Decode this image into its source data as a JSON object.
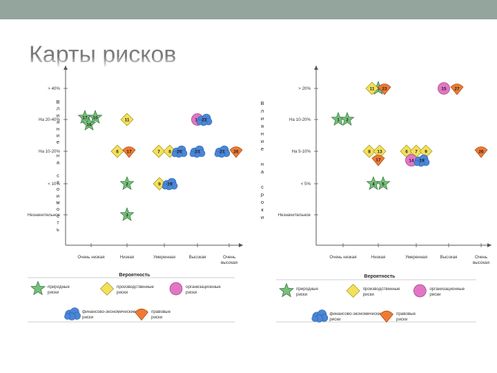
{
  "slide": {
    "title": "Карты рисков"
  },
  "colors": {
    "natural": "#77c07a",
    "production": "#f3e05a",
    "organizational": "#e276c4",
    "financial": "#4a86d8",
    "legal": "#f07a33",
    "background_bar": "#93a59c"
  },
  "chart_data": [
    {
      "type": "scatter",
      "title": "",
      "xlabel": "Вероятность",
      "ylabel": "Влияние на стоимость",
      "ylabel_chars": [
        "В",
        "л",
        "и",
        "я",
        "н",
        "и",
        "е",
        "",
        "н",
        "а",
        "",
        "с",
        "т",
        "о",
        "и",
        "м",
        "о",
        "с",
        "т",
        "ь"
      ],
      "x_categories": [
        "Очень низкая",
        "Низкая",
        "Умеренная",
        "Высокая",
        "Очень высокая"
      ],
      "y_categories": [
        "Незначительное",
        "< 10%",
        "На 10-20%",
        "На 20-40%",
        "> 40%"
      ],
      "points": [
        {
          "id": "17",
          "category": "natural",
          "x": "Очень низкая",
          "y": "На 20-40%"
        },
        {
          "id": "10",
          "category": "natural",
          "x": "Очень низкая",
          "y": "На 20-40%"
        },
        {
          "id": "16",
          "category": "natural",
          "x": "Очень низкая",
          "y": "На 20-40%"
        },
        {
          "id": "11",
          "category": "production",
          "x": "Низкая",
          "y": "На 20-40%"
        },
        {
          "id": "15",
          "category": "organizational",
          "x": "Высокая",
          "y": "На 20-40%"
        },
        {
          "id": "22",
          "category": "financial",
          "x": "Высокая",
          "y": "На 20-40%"
        },
        {
          "id": "6",
          "category": "production",
          "x": "Низкая",
          "y": "На 10-20%"
        },
        {
          "id": "17",
          "category": "legal",
          "x": "Низкая",
          "y": "На 10-20%"
        },
        {
          "id": "7",
          "category": "production",
          "x": "Умеренная",
          "y": "На 10-20%"
        },
        {
          "id": "8",
          "category": "production",
          "x": "Умеренная",
          "y": "На 10-20%"
        },
        {
          "id": "20",
          "category": "financial",
          "x": "Умеренная",
          "y": "На 10-20%"
        },
        {
          "id": "23",
          "category": "financial",
          "x": "Высокая",
          "y": "На 10-20%"
        },
        {
          "id": "21",
          "category": "financial",
          "x": "Очень высокая",
          "y": "На 10-20%"
        },
        {
          "id": "26",
          "category": "legal",
          "x": "Очень высокая",
          "y": "На 10-20%"
        },
        {
          "id": "2",
          "category": "natural",
          "x": "Низкая",
          "y": "< 10%"
        },
        {
          "id": "9",
          "category": "production",
          "x": "Умеренная",
          "y": "< 10%"
        },
        {
          "id": "19",
          "category": "financial",
          "x": "Умеренная",
          "y": "< 10%"
        },
        {
          "id": "3",
          "category": "natural",
          "x": "Низкая",
          "y": "Незначительное"
        }
      ]
    },
    {
      "type": "scatter",
      "title": "",
      "xlabel": "Вероятность",
      "ylabel": "Влияние на сроки",
      "ylabel_chars": [
        "В",
        "л",
        "и",
        "я",
        "н",
        "и",
        "е",
        "",
        "н",
        "а",
        "",
        "с",
        "р",
        "о",
        "к",
        "и"
      ],
      "x_categories": [
        "Очень низкая",
        "Низкая",
        "Умеренная",
        "Высокая",
        "Очень высокая"
      ],
      "y_categories": [
        "Незначительное",
        "< 5%",
        "На 5-10%",
        "На 10-20%",
        "> 20%"
      ],
      "points": [
        {
          "id": "3",
          "category": "natural",
          "x": "Низкая",
          "y": "> 20%"
        },
        {
          "id": "11",
          "category": "production",
          "x": "Низкая",
          "y": "> 20%"
        },
        {
          "id": "23",
          "category": "legal",
          "x": "Низкая",
          "y": "> 20%"
        },
        {
          "id": "15",
          "category": "organizational",
          "x": "Высокая",
          "y": "> 20%"
        },
        {
          "id": "27",
          "category": "legal",
          "x": "Высокая",
          "y": "> 20%"
        },
        {
          "id": "1",
          "category": "natural",
          "x": "Очень низкая",
          "y": "На 10-20%"
        },
        {
          "id": "2",
          "category": "natural",
          "x": "Очень низкая",
          "y": "На 10-20%"
        },
        {
          "id": "8",
          "category": "production",
          "x": "Низкая",
          "y": "На 5-10%"
        },
        {
          "id": "13",
          "category": "production",
          "x": "Низкая",
          "y": "На 5-10%"
        },
        {
          "id": "17",
          "category": "legal",
          "x": "Низкая",
          "y": "На 5-10%"
        },
        {
          "id": "6",
          "category": "production",
          "x": "Умеренная",
          "y": "На 5-10%"
        },
        {
          "id": "7",
          "category": "production",
          "x": "Умеренная",
          "y": "На 5-10%"
        },
        {
          "id": "9",
          "category": "production",
          "x": "Умеренная",
          "y": "На 5-10%"
        },
        {
          "id": "14",
          "category": "organizational",
          "x": "Умеренная",
          "y": "На 5-10%"
        },
        {
          "id": "19",
          "category": "financial",
          "x": "Умеренная",
          "y": "На 5-10%"
        },
        {
          "id": "26",
          "category": "legal",
          "x": "Очень высокая",
          "y": "На 5-10%"
        },
        {
          "id": "4",
          "category": "natural",
          "x": "Низкая",
          "y": "< 5%"
        },
        {
          "id": "5",
          "category": "natural",
          "x": "Низкая",
          "y": "< 5%"
        }
      ]
    }
  ],
  "legend": [
    [
      {
        "category": "natural",
        "label": "природные риски"
      },
      {
        "category": "production",
        "label": "производственные риски"
      },
      {
        "category": "organizational",
        "label": "организационные риски"
      },
      {
        "category": "financial",
        "label": "финансово-экономические риски"
      },
      {
        "category": "legal",
        "label": "правовые риски"
      }
    ],
    [
      {
        "category": "natural",
        "label": "природные риски"
      },
      {
        "category": "production",
        "label": "производственные риски"
      },
      {
        "category": "organizational",
        "label": "организационные риски"
      },
      {
        "category": "financial",
        "label": "финансово-экономические риски"
      },
      {
        "category": "legal",
        "label": "правовые риски"
      }
    ]
  ]
}
